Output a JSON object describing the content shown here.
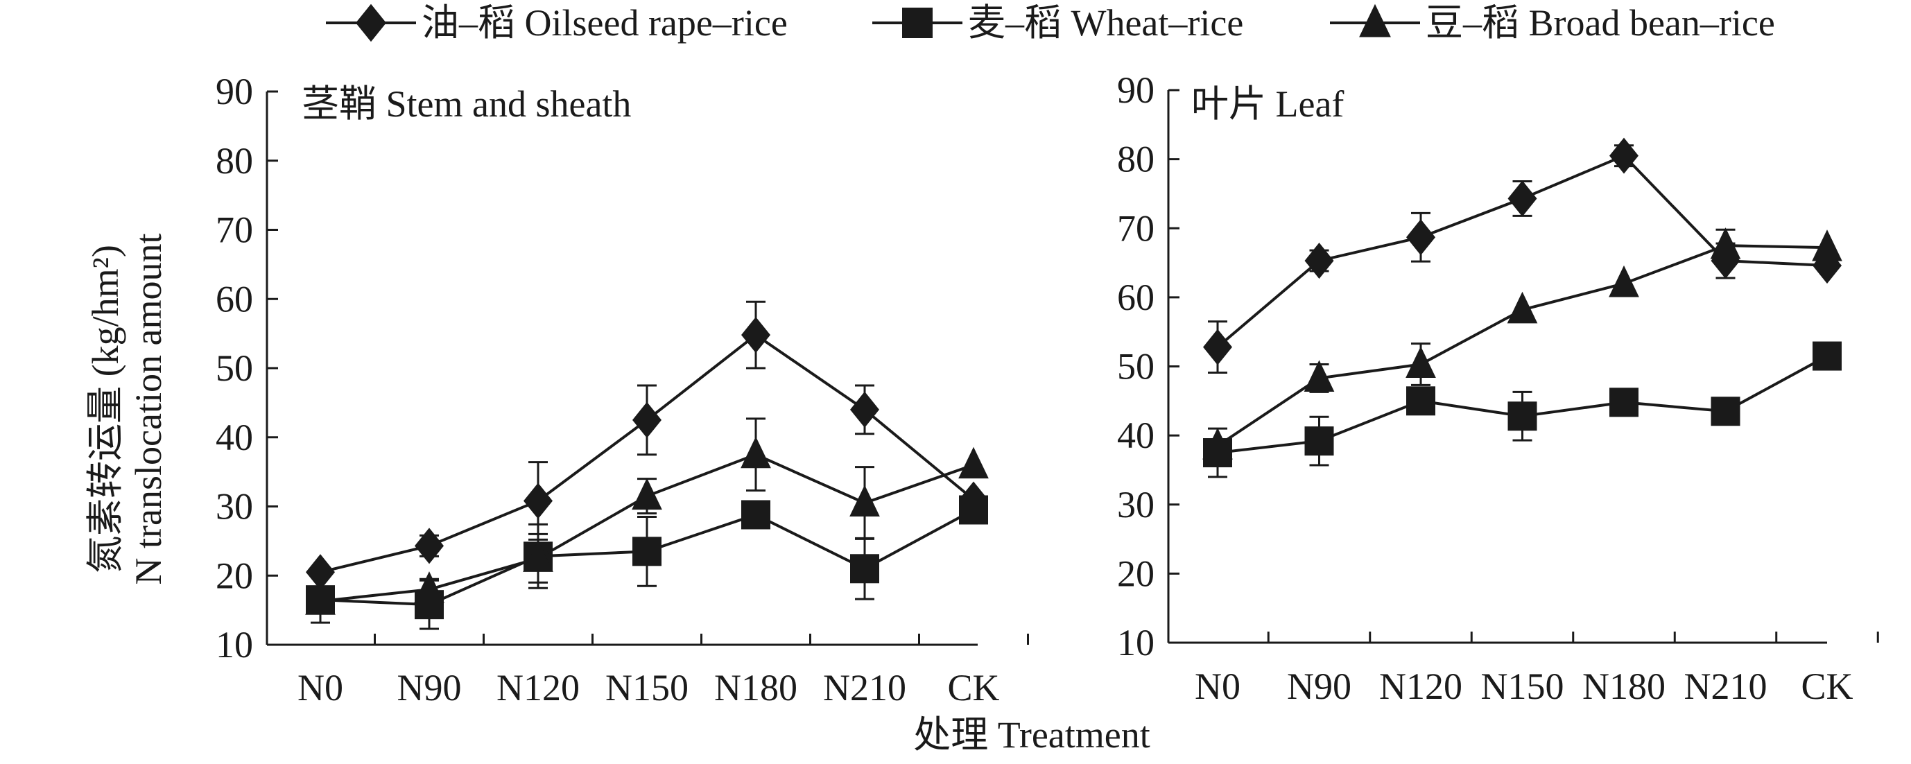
{
  "legend": [
    {
      "label": "油–稻 Oilseed rape–rice",
      "marker": "diamond"
    },
    {
      "label": "麦–稻 Wheat–rice",
      "marker": "square"
    },
    {
      "label": "豆–稻 Broad bean–rice",
      "marker": "triangle"
    }
  ],
  "y_title_cn": "氮素转运量 (kg/hm²)",
  "y_title_en": "N translocation amount",
  "x_title": "处理 Treatment",
  "colors": {
    "line": "#1a1a1a",
    "background": "#ffffff"
  },
  "chart_data": [
    {
      "type": "line",
      "title": "茎鞘 Stem and sheath",
      "categories": [
        "N0",
        "N90",
        "N120",
        "N150",
        "N180",
        "N210",
        "CK"
      ],
      "ylim": [
        10,
        90
      ],
      "yticks": [
        "10",
        "20",
        "30",
        "40",
        "50",
        "60",
        "70",
        "80",
        "90"
      ],
      "grid": false,
      "series": [
        {
          "name": "油–稻 Oilseed rape–rice",
          "marker": "diamond",
          "values": [
            20.5,
            24.3,
            30.8,
            42.5,
            54.8,
            44.0,
            31.0
          ],
          "errors": [
            0.0,
            1.5,
            5.6,
            5.0,
            4.8,
            3.5,
            0.0
          ]
        },
        {
          "name": "麦–稻 Wheat–rice",
          "marker": "square",
          "values": [
            16.5,
            15.8,
            22.8,
            23.5,
            28.8,
            21.0,
            29.5
          ],
          "errors": [
            3.3,
            3.5,
            4.6,
            5.0,
            0.0,
            4.4,
            0.0
          ]
        },
        {
          "name": "豆–稻 Broad bean–rice",
          "marker": "triangle",
          "values": [
            16.3,
            18.0,
            22.5,
            31.5,
            37.5,
            30.5,
            36.0
          ],
          "errors": [
            1.5,
            1.5,
            3.5,
            2.5,
            5.2,
            5.2,
            0.0
          ]
        }
      ]
    },
    {
      "type": "line",
      "title": "叶片 Leaf",
      "categories": [
        "N0",
        "N90",
        "N120",
        "N150",
        "N180",
        "N210",
        "CK"
      ],
      "ylim": [
        10,
        90
      ],
      "yticks": [
        "10",
        "20",
        "30",
        "40",
        "50",
        "60",
        "70",
        "80",
        "90"
      ],
      "grid": false,
      "series": [
        {
          "name": "油–稻 Oilseed rape–rice",
          "marker": "diamond",
          "values": [
            52.8,
            65.3,
            68.7,
            74.3,
            80.5,
            65.3,
            64.6
          ],
          "errors": [
            3.7,
            1.5,
            3.5,
            2.5,
            1.5,
            2.5,
            0.0
          ]
        },
        {
          "name": "麦–稻 Wheat–rice",
          "marker": "square",
          "values": [
            37.5,
            39.2,
            45.0,
            42.8,
            44.8,
            43.5,
            51.5
          ],
          "errors": [
            3.5,
            3.5,
            0.0,
            3.5,
            0.0,
            0.0,
            0.0
          ]
        },
        {
          "name": "豆–稻 Broad bean–rice",
          "marker": "triangle",
          "values": [
            38.5,
            48.3,
            50.3,
            58.2,
            62.0,
            67.5,
            67.2
          ],
          "errors": [
            0.0,
            2.0,
            3.0,
            0.0,
            0.0,
            2.3,
            0.0
          ]
        }
      ]
    }
  ]
}
